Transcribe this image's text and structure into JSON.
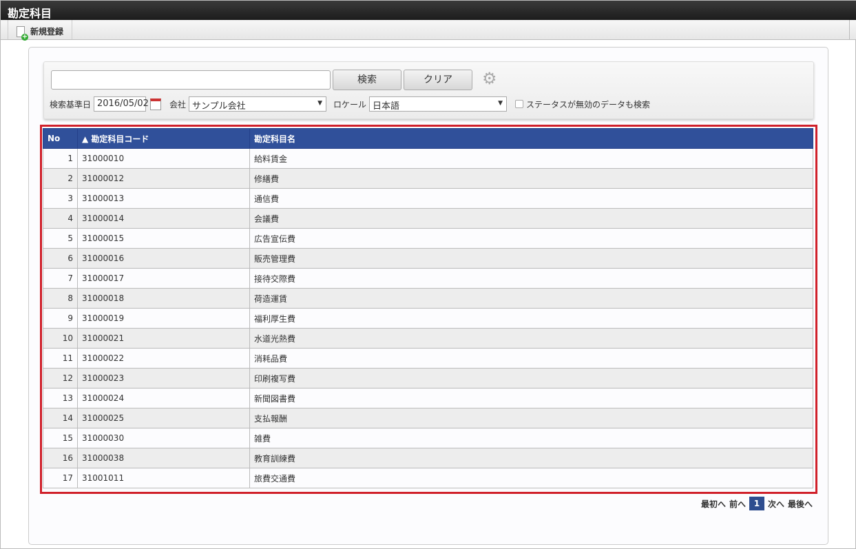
{
  "title": "勘定科目",
  "toolbar": {
    "new_label": "新規登録"
  },
  "search": {
    "keyword": "",
    "search_label": "検索",
    "clear_label": "クリア",
    "date_label": "検索基準日",
    "date_value": "2016/05/02",
    "company_label": "会社",
    "company_value": "サンプル会社",
    "locale_label": "ロケール",
    "locale_value": "日本語",
    "inactive_label": "ステータスが無効のデータも検索",
    "inactive_checked": false
  },
  "table": {
    "headers": [
      "No",
      "▲ 勘定科目コード",
      "勘定科目名"
    ],
    "rows": [
      [
        "1",
        "31000010",
        "給料賃金"
      ],
      [
        "2",
        "31000012",
        "修繕費"
      ],
      [
        "3",
        "31000013",
        "通信費"
      ],
      [
        "4",
        "31000014",
        "会議費"
      ],
      [
        "5",
        "31000015",
        "広告宣伝費"
      ],
      [
        "6",
        "31000016",
        "販売管理費"
      ],
      [
        "7",
        "31000017",
        "接待交際費"
      ],
      [
        "8",
        "31000018",
        "荷造運賃"
      ],
      [
        "9",
        "31000019",
        "福利厚生費"
      ],
      [
        "10",
        "31000021",
        "水道光熱費"
      ],
      [
        "11",
        "31000022",
        "消耗品費"
      ],
      [
        "12",
        "31000023",
        "印刷複写費"
      ],
      [
        "13",
        "31000024",
        "新聞図書費"
      ],
      [
        "14",
        "31000025",
        "支払報酬"
      ],
      [
        "15",
        "31000030",
        "雑費"
      ],
      [
        "16",
        "31000038",
        "教育訓練費"
      ],
      [
        "17",
        "31001011",
        "旅費交通費"
      ]
    ]
  },
  "pager": {
    "first": "最初へ",
    "prev": "前へ",
    "current": "1",
    "next": "次へ",
    "last": "最後へ"
  }
}
